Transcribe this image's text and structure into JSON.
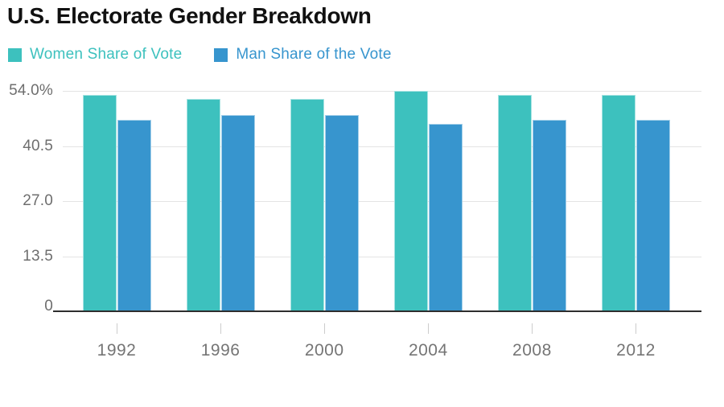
{
  "page": {
    "title": "U.S. Electorate Gender Breakdown"
  },
  "legend": {
    "items": [
      {
        "label": "Women Share of Vote",
        "color": "#3dc1be"
      },
      {
        "label": "Man Share of the Vote",
        "color": "#3795ce"
      }
    ]
  },
  "colors": {
    "women_bar": "#3dc1be",
    "men_bar": "#3795ce",
    "gridline": "#e4e4e4",
    "axis_line": "#2e2e2e",
    "tick_mark": "#cccccc",
    "y_label_text": "#6e6e6e",
    "x_label_text": "#757575",
    "title_text": "#111111"
  },
  "chart_data": {
    "type": "bar",
    "title": "U.S. Electorate Gender Breakdown",
    "categories": [
      "1992",
      "1996",
      "2000",
      "2004",
      "2008",
      "2012"
    ],
    "series": [
      {
        "name": "Women Share of Vote",
        "color": "#3dc1be",
        "values": [
          53,
          52,
          52,
          54,
          53,
          53
        ]
      },
      {
        "name": "Man Share of the Vote",
        "color": "#3795ce",
        "values": [
          47,
          48,
          48,
          46,
          47,
          47
        ]
      }
    ],
    "xlabel": "",
    "ylabel": "",
    "ylim": [
      0,
      54
    ],
    "ytick_values": [
      54,
      40.5,
      27,
      13.5,
      0
    ],
    "ytick_labels": [
      "54.0%",
      "40.5",
      "27.0",
      "13.5",
      "0"
    ],
    "grid": true,
    "legend_position": "top-left",
    "units": "percent"
  }
}
